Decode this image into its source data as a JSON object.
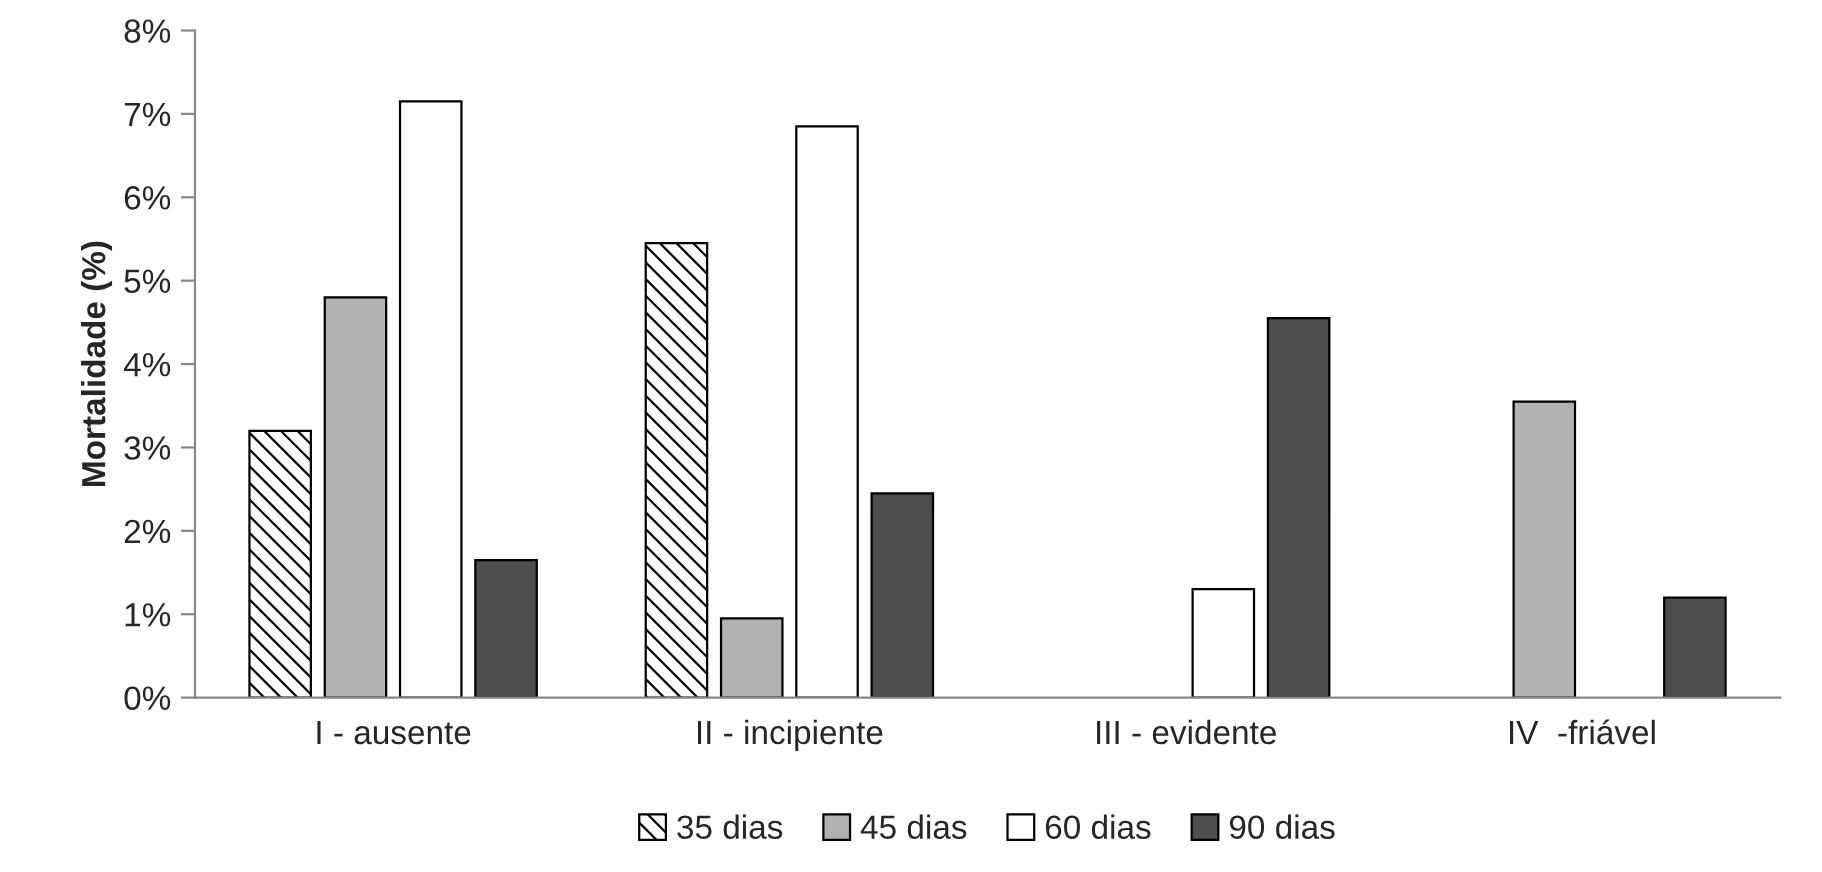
{
  "chart_data": {
    "type": "bar",
    "ylabel": "Mortalidade (%)",
    "categories": [
      "I - ausente",
      "II - incipiente",
      "III - evidente",
      "IV  -friável"
    ],
    "series": [
      {
        "name": "35 dias",
        "color": "#000000",
        "values": [
          3.2,
          5.45,
          null,
          null
        ]
      },
      {
        "name": "45 dias",
        "color": "#b2b2b2",
        "values": [
          4.8,
          0.95,
          null,
          3.55
        ]
      },
      {
        "name": "60 dias",
        "color": "#ffffff",
        "values": [
          7.15,
          6.85,
          1.3,
          null
        ]
      },
      {
        "name": "90 dias",
        "color": "#4d4d4d",
        "values": [
          1.65,
          2.45,
          4.55,
          1.2
        ]
      }
    ],
    "ylim": [
      0,
      8
    ],
    "yticks": [
      {
        "value": 0,
        "label": "0%"
      },
      {
        "value": 1,
        "label": "1%"
      },
      {
        "value": 2,
        "label": "2%"
      },
      {
        "value": 3,
        "label": "3%"
      },
      {
        "value": 4,
        "label": "4%"
      },
      {
        "value": 5,
        "label": "5%"
      },
      {
        "value": 6,
        "label": "6%"
      },
      {
        "value": 7,
        "label": "7%"
      },
      {
        "value": 8,
        "label": "8%"
      }
    ],
    "grid": false,
    "legend": "bottom"
  }
}
